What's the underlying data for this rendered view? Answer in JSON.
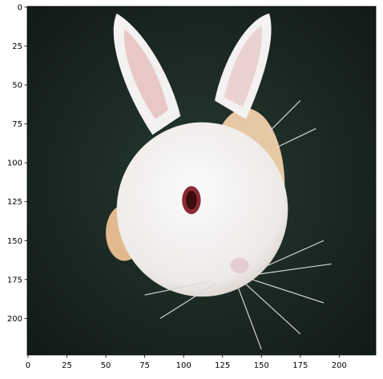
{
  "chart_data": {
    "type": "image",
    "xlim": [
      -0.5,
      223.5
    ],
    "ylim": [
      223.5,
      -0.5
    ],
    "xticks": [
      0,
      25,
      50,
      75,
      100,
      125,
      150,
      175,
      200
    ],
    "yticks": [
      0,
      25,
      50,
      75,
      100,
      125,
      150,
      175,
      200
    ]
  }
}
